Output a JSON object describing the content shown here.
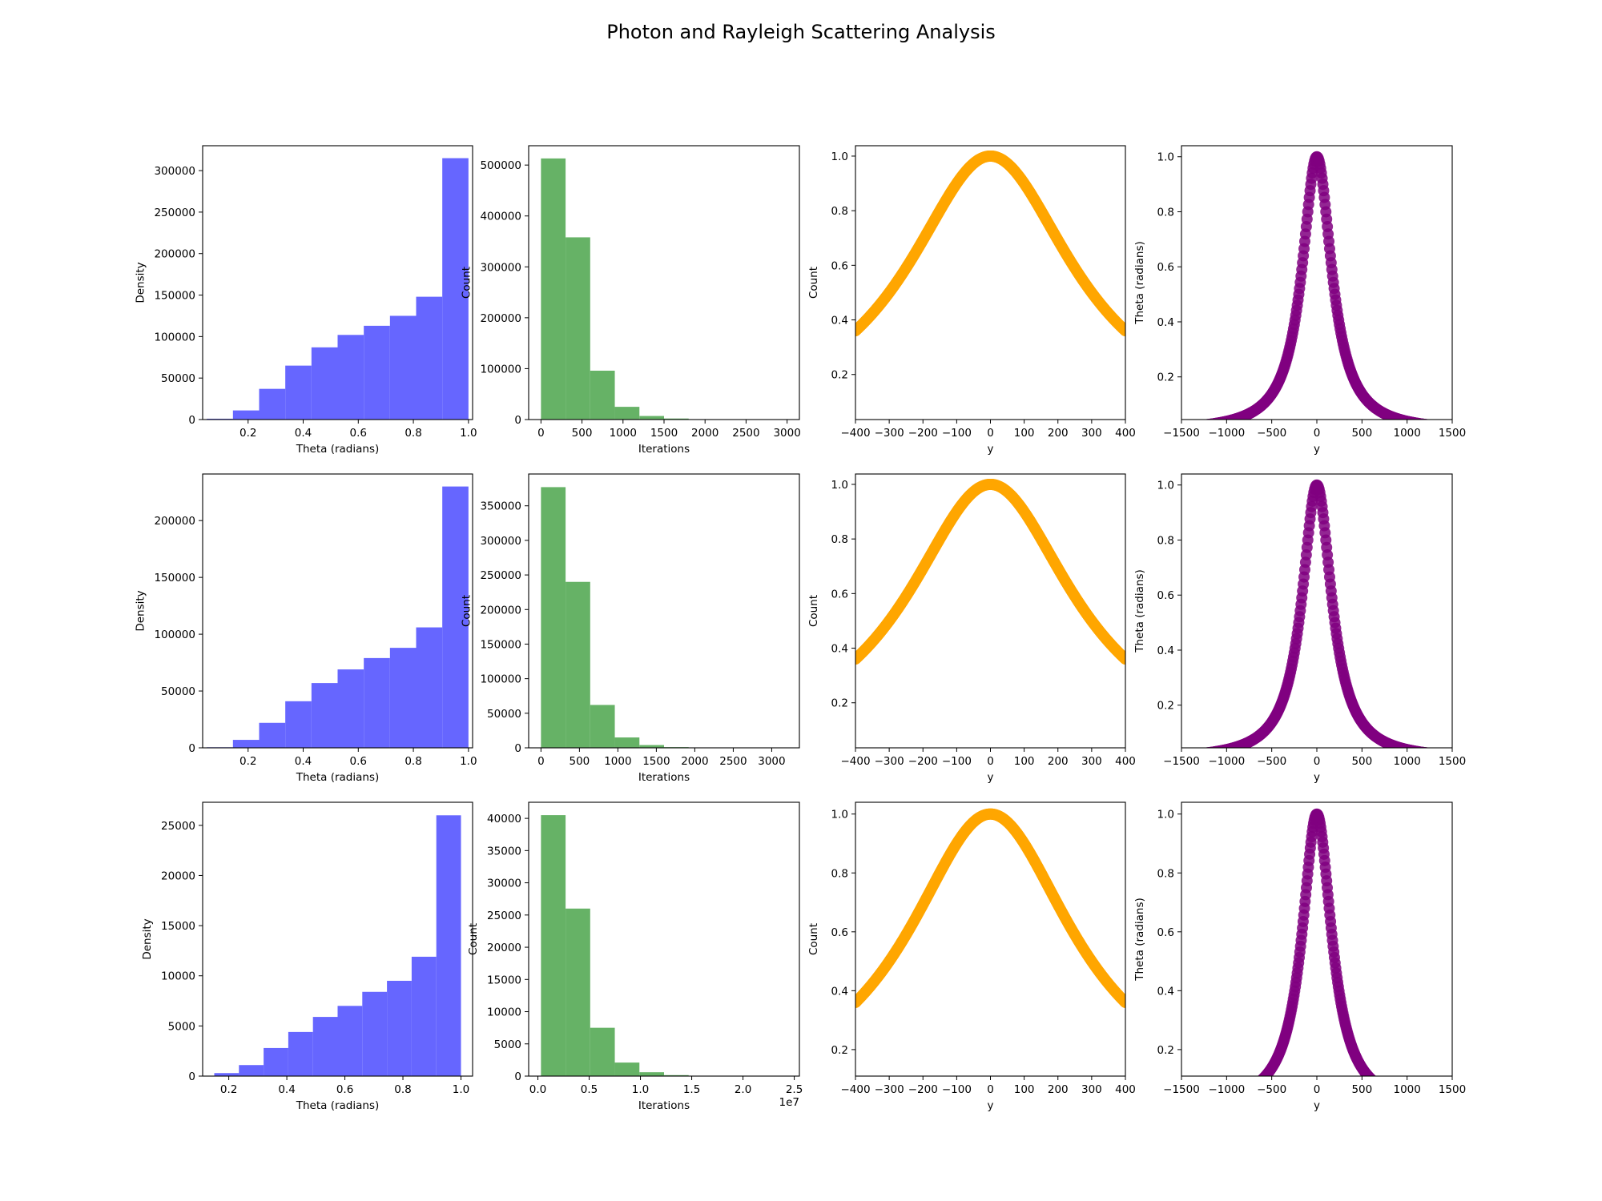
{
  "figure": {
    "title": "Photon and Rayleigh Scattering Analysis"
  },
  "colors": {
    "theta": "#6666ff",
    "iter": "#66b266",
    "orange": "#ffa500",
    "purple": "#800080"
  },
  "chart_data": [
    {
      "type": "bar",
      "title": "",
      "xlabel": "Theta (radians)",
      "ylabel": "Density",
      "bin_edges": [
        0.05,
        0.145,
        0.24,
        0.335,
        0.43,
        0.525,
        0.62,
        0.715,
        0.81,
        0.905,
        1.0
      ],
      "values": [
        1000,
        11000,
        37000,
        65000,
        87000,
        102000,
        113000,
        125000,
        148000,
        315000
      ],
      "xlim": [
        0.035,
        1.015
      ],
      "ylim": [
        0,
        330000
      ],
      "xticks": [
        0.2,
        0.4,
        0.6,
        0.8,
        1.0
      ],
      "xtick_labels": [
        "0.2",
        "0.4",
        "0.6",
        "0.8",
        "1.0"
      ],
      "yticks": [
        0,
        50000,
        100000,
        150000,
        200000,
        250000,
        300000
      ],
      "ytick_labels": [
        "0",
        "50000",
        "100000",
        "150000",
        "200000",
        "250000",
        "300000"
      ]
    },
    {
      "type": "bar",
      "title": "",
      "xlabel": "Iterations",
      "ylabel": "Count",
      "bin_edges": [
        0,
        300,
        600,
        900,
        1200,
        1500,
        1800,
        2100,
        2400,
        2700,
        3000
      ],
      "values": [
        513000,
        358000,
        96000,
        25000,
        7000,
        2000,
        800,
        300,
        100,
        50
      ],
      "xlim": [
        -150,
        3150
      ],
      "ylim": [
        0,
        538000
      ],
      "xticks": [
        0,
        500,
        1000,
        1500,
        2000,
        2500,
        3000
      ],
      "xtick_labels": [
        "0",
        "500",
        "1000",
        "1500",
        "2000",
        "2500",
        "3000"
      ],
      "yticks": [
        0,
        100000,
        200000,
        300000,
        400000,
        500000
      ],
      "ytick_labels": [
        "0",
        "100000",
        "200000",
        "300000",
        "400000",
        "500000"
      ]
    },
    {
      "type": "scatter",
      "title": "",
      "xlabel": "y",
      "ylabel": "Count",
      "curve": "lorentz",
      "width": 300,
      "x_range": [
        -400,
        400
      ],
      "xlim": [
        -400,
        400
      ],
      "ylim": [
        0.035,
        1.038
      ],
      "xticks": [
        -400,
        -300,
        -200,
        -100,
        0,
        100,
        200,
        300,
        400
      ],
      "xtick_labels": [
        "−400",
        "−300",
        "−200",
        "−100",
        "0",
        "100",
        "200",
        "300",
        "400"
      ],
      "yticks": [
        0.2,
        0.4,
        0.6,
        0.8,
        1.0
      ],
      "ytick_labels": [
        "0.2",
        "0.4",
        "0.6",
        "0.8",
        "1.0"
      ]
    },
    {
      "type": "scatter",
      "title": "",
      "xlabel": "y",
      "ylabel": "Theta (radians)",
      "curve": "lorentz",
      "width": 200,
      "x_range": [
        -1500,
        1500
      ],
      "xlim": [
        -1500,
        1500
      ],
      "ylim": [
        0.045,
        1.04
      ],
      "xticks": [
        -1500,
        -1000,
        -500,
        0,
        500,
        1000,
        1500
      ],
      "xtick_labels": [
        "−1500",
        "−1000",
        "−500",
        "0",
        "500",
        "1000",
        "1500"
      ],
      "yticks": [
        0.2,
        0.4,
        0.6,
        0.8,
        1.0
      ],
      "ytick_labels": [
        "0.2",
        "0.4",
        "0.6",
        "0.8",
        "1.0"
      ]
    },
    {
      "type": "bar",
      "title": "",
      "xlabel": "Theta (radians)",
      "ylabel": "Density",
      "bin_edges": [
        0.05,
        0.145,
        0.24,
        0.335,
        0.43,
        0.525,
        0.62,
        0.715,
        0.81,
        0.905,
        1.0
      ],
      "values": [
        500,
        7000,
        22000,
        41000,
        57000,
        69000,
        79000,
        88000,
        106000,
        230000
      ],
      "xlim": [
        0.035,
        1.015
      ],
      "ylim": [
        0,
        241000
      ],
      "xticks": [
        0.2,
        0.4,
        0.6,
        0.8,
        1.0
      ],
      "xtick_labels": [
        "0.2",
        "0.4",
        "0.6",
        "0.8",
        "1.0"
      ],
      "yticks": [
        0,
        50000,
        100000,
        150000,
        200000
      ],
      "ytick_labels": [
        "0",
        "50000",
        "100000",
        "150000",
        "200000"
      ]
    },
    {
      "type": "bar",
      "title": "",
      "xlabel": "Iterations",
      "ylabel": "Count",
      "bin_edges": [
        0,
        320,
        640,
        960,
        1280,
        1600,
        1920,
        2240,
        2560,
        2880,
        3200
      ],
      "values": [
        377000,
        240000,
        62000,
        15000,
        4000,
        1000,
        400,
        200,
        80,
        30
      ],
      "xlim": [
        -160,
        3360
      ],
      "ylim": [
        0,
        396000
      ],
      "xticks": [
        0,
        500,
        1000,
        1500,
        2000,
        2500,
        3000
      ],
      "xtick_labels": [
        "0",
        "500",
        "1000",
        "1500",
        "2000",
        "2500",
        "3000"
      ],
      "yticks": [
        0,
        50000,
        100000,
        150000,
        200000,
        250000,
        300000,
        350000
      ],
      "ytick_labels": [
        "0",
        "50000",
        "100000",
        "150000",
        "200000",
        "250000",
        "300000",
        "350000"
      ]
    },
    {
      "type": "scatter",
      "title": "",
      "xlabel": "y",
      "ylabel": "Count",
      "curve": "lorentz",
      "width": 300,
      "x_range": [
        -400,
        400
      ],
      "xlim": [
        -400,
        400
      ],
      "ylim": [
        0.035,
        1.038
      ],
      "xticks": [
        -400,
        -300,
        -200,
        -100,
        0,
        100,
        200,
        300,
        400
      ],
      "xtick_labels": [
        "−400",
        "−300",
        "−200",
        "−100",
        "0",
        "100",
        "200",
        "300",
        "400"
      ],
      "yticks": [
        0.2,
        0.4,
        0.6,
        0.8,
        1.0
      ],
      "ytick_labels": [
        "0.2",
        "0.4",
        "0.6",
        "0.8",
        "1.0"
      ]
    },
    {
      "type": "scatter",
      "title": "",
      "xlabel": "y",
      "ylabel": "Theta (radians)",
      "curve": "lorentz",
      "width": 200,
      "x_range": [
        -1500,
        1500
      ],
      "xlim": [
        -1500,
        1500
      ],
      "ylim": [
        0.045,
        1.04
      ],
      "xticks": [
        -1500,
        -1000,
        -500,
        0,
        500,
        1000,
        1500
      ],
      "xtick_labels": [
        "−1500",
        "−1000",
        "−500",
        "0",
        "500",
        "1000",
        "1500"
      ],
      "yticks": [
        0.2,
        0.4,
        0.6,
        0.8,
        1.0
      ],
      "ytick_labels": [
        "0.2",
        "0.4",
        "0.6",
        "0.8",
        "1.0"
      ]
    },
    {
      "type": "bar",
      "title": "",
      "xlabel": "Theta (radians)",
      "ylabel": "Density",
      "bin_edges": [
        0.15,
        0.235,
        0.32,
        0.405,
        0.49,
        0.575,
        0.66,
        0.745,
        0.83,
        0.915,
        1.0
      ],
      "values": [
        300,
        1100,
        2800,
        4400,
        5900,
        7000,
        8400,
        9500,
        11900,
        26000
      ],
      "xlim": [
        0.11,
        1.04
      ],
      "ylim": [
        0,
        27300
      ],
      "xticks": [
        0.2,
        0.4,
        0.6,
        0.8,
        1.0
      ],
      "xtick_labels": [
        "0.2",
        "0.4",
        "0.6",
        "0.8",
        "1.0"
      ],
      "yticks": [
        0,
        5000,
        10000,
        15000,
        20000,
        25000
      ],
      "ytick_labels": [
        "0",
        "5000",
        "10000",
        "15000",
        "20000",
        "25000"
      ]
    },
    {
      "type": "bar",
      "title": "",
      "xlabel": "Iterations",
      "ylabel": "Count",
      "offset_label": "1e7",
      "bin_edges": [
        0.03,
        0.27,
        0.51,
        0.75,
        0.99,
        1.23,
        1.47,
        1.71,
        1.95,
        2.19,
        2.43
      ],
      "values": [
        40500,
        26000,
        7500,
        2100,
        600,
        150,
        60,
        20,
        10,
        5
      ],
      "xlim": [
        -0.09,
        2.55
      ],
      "ylim": [
        0,
        42500
      ],
      "xticks": [
        0.0,
        0.5,
        1.0,
        1.5,
        2.0,
        2.5
      ],
      "xtick_labels": [
        "0.0",
        "0.5",
        "1.0",
        "1.5",
        "2.0",
        "2.5"
      ],
      "yticks": [
        0,
        5000,
        10000,
        15000,
        20000,
        25000,
        30000,
        35000,
        40000
      ],
      "ytick_labels": [
        "0",
        "5000",
        "10000",
        "15000",
        "20000",
        "25000",
        "30000",
        "35000",
        "40000"
      ]
    },
    {
      "type": "scatter",
      "title": "",
      "xlabel": "y",
      "ylabel": "Count",
      "curve": "lorentz",
      "width": 300,
      "x_range": [
        -400,
        400
      ],
      "xlim": [
        -400,
        400
      ],
      "ylim": [
        0.11,
        1.04
      ],
      "xticks": [
        -400,
        -300,
        -200,
        -100,
        0,
        100,
        200,
        300,
        400
      ],
      "xtick_labels": [
        "−400",
        "−300",
        "−200",
        "−100",
        "0",
        "100",
        "200",
        "300",
        "400"
      ],
      "yticks": [
        0.2,
        0.4,
        0.6,
        0.8,
        1.0
      ],
      "ytick_labels": [
        "0.2",
        "0.4",
        "0.6",
        "0.8",
        "1.0"
      ]
    },
    {
      "type": "scatter",
      "title": "",
      "xlabel": "y",
      "ylabel": "Theta (radians)",
      "curve": "lorentz",
      "width": 200,
      "x_range": [
        -1300,
        1300
      ],
      "xlim": [
        -1500,
        1500
      ],
      "ylim": [
        0.11,
        1.04
      ],
      "xticks": [
        -1500,
        -1000,
        -500,
        0,
        500,
        1000,
        1500
      ],
      "xtick_labels": [
        "−1500",
        "−1000",
        "−500",
        "0",
        "500",
        "1000",
        "1500"
      ],
      "yticks": [
        0.2,
        0.4,
        0.6,
        0.8,
        1.0
      ],
      "ytick_labels": [
        "0.2",
        "0.4",
        "0.6",
        "0.8",
        "1.0"
      ]
    }
  ]
}
